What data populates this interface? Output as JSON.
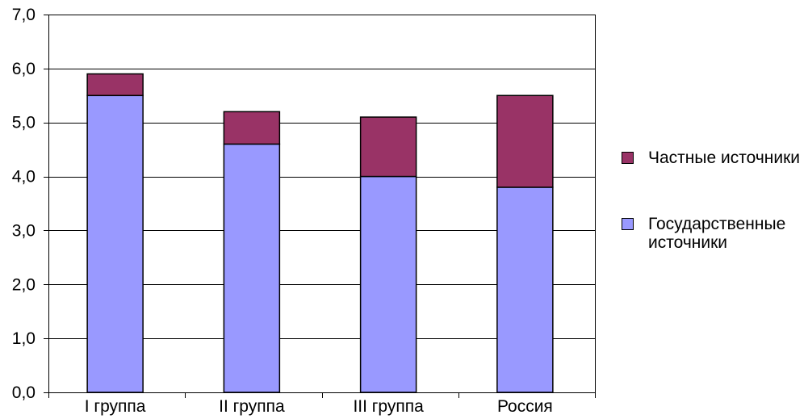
{
  "chart_data": {
    "type": "bar",
    "stacked": true,
    "categories": [
      "I группа",
      "II группа",
      "III группа",
      "Россия"
    ],
    "series": [
      {
        "name": "Государственные источники",
        "values": [
          5.5,
          4.6,
          4.0,
          3.8
        ],
        "color": "#9999FF"
      },
      {
        "name": "Частные источники",
        "values": [
          0.4,
          0.6,
          1.1,
          1.7
        ],
        "color": "#993366"
      }
    ],
    "yticks": [
      0,
      1,
      2,
      3,
      4,
      5,
      6,
      7
    ],
    "ytick_labels": [
      "0,0",
      "1,0",
      "2,0",
      "3,0",
      "4,0",
      "5,0",
      "6,0",
      "7,0"
    ],
    "ylim": [
      0,
      7
    ],
    "grid": true,
    "legend": "right"
  }
}
